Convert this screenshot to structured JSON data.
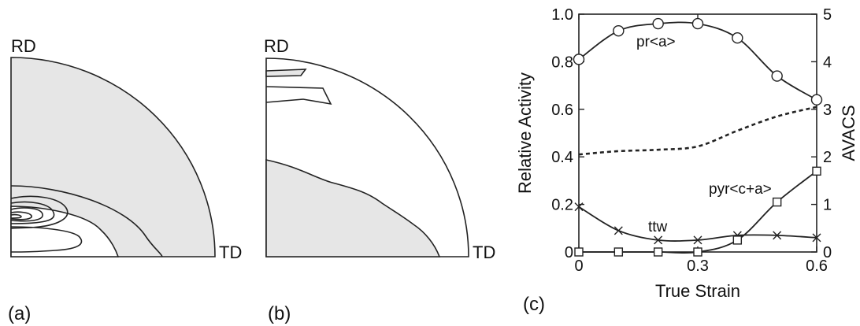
{
  "panels": [
    {
      "letter": "(a)",
      "rd_label": "RD",
      "td_label": "TD"
    },
    {
      "letter": "(b)",
      "rd_label": "RD",
      "td_label": "TD"
    },
    {
      "letter": "(c)"
    }
  ],
  "colors": {
    "fill": "#e6e6e6",
    "stroke": "#222222",
    "dotted": "#222222"
  },
  "chart_data": {
    "type": "line",
    "xlabel": "True Strain",
    "ylabel_left": "Relative Activity",
    "ylabel_right": "AVACS",
    "xlim": [
      0,
      0.6
    ],
    "ylim_left": [
      0,
      1.0
    ],
    "ylim_right": [
      0,
      5
    ],
    "x_ticks": [
      0,
      0.3,
      0.6
    ],
    "x_tick_labels": [
      "0",
      "0.3",
      "0.6"
    ],
    "y_ticks_left": [
      0,
      0.2,
      0.4,
      0.6,
      0.8,
      1.0
    ],
    "y_tick_labels_left": [
      "0",
      "0.2",
      "0.4",
      "0.6",
      "0.8",
      "1.0"
    ],
    "y_ticks_right": [
      0,
      1,
      2,
      3,
      4,
      5
    ],
    "y_tick_labels_right": [
      "0",
      "1",
      "2",
      "3",
      "4",
      "5"
    ],
    "x": [
      0,
      0.1,
      0.2,
      0.3,
      0.4,
      0.5,
      0.6
    ],
    "series": [
      {
        "name": "pr<a>",
        "marker": "circle",
        "axis": "left",
        "values": [
          0.81,
          0.93,
          0.96,
          0.96,
          0.9,
          0.74,
          0.64
        ]
      },
      {
        "name": "ttw",
        "marker": "x",
        "axis": "left",
        "values": [
          0.19,
          0.09,
          0.05,
          0.05,
          0.07,
          0.07,
          0.06
        ]
      },
      {
        "name": "pyr<c+a>",
        "marker": "square",
        "axis": "left",
        "values": [
          0.0,
          0.0,
          0.0,
          0.0,
          0.05,
          0.21,
          0.34
        ]
      },
      {
        "marker": "none",
        "style": "dotted",
        "axis": "right",
        "x": [
          0,
          0.1,
          0.2,
          0.3,
          0.4,
          0.5,
          0.6
        ],
        "values": [
          2.05,
          2.12,
          2.15,
          2.22,
          2.55,
          2.85,
          3.05
        ]
      }
    ]
  }
}
